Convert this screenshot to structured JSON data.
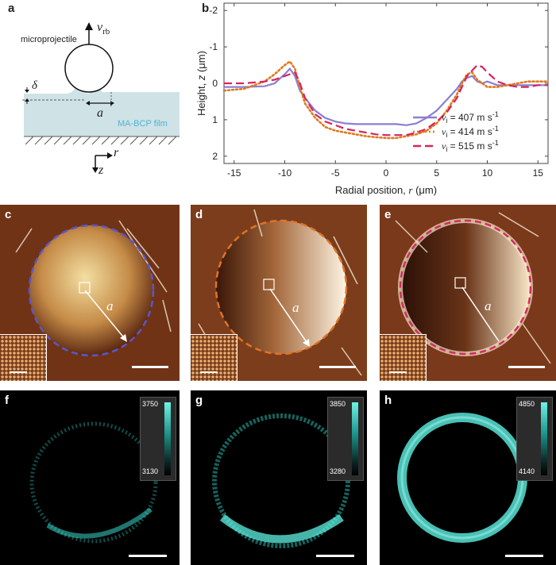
{
  "panels": {
    "a": {
      "label": "a",
      "microprojectile": "microprojectile",
      "v_rb": "v",
      "v_rb_sub": "rb",
      "delta": "δ",
      "a_symbol": "a",
      "film": "MA-BCP film",
      "r_axis": "r",
      "z_axis": "z",
      "colors": {
        "film": "#cfe2e6",
        "film_text": "#4fb3d3"
      }
    },
    "b": {
      "label": "b"
    },
    "c": {
      "label": "c",
      "a_symbol": "a",
      "ring_color": "#5a57c9"
    },
    "d": {
      "label": "d",
      "a_symbol": "a",
      "ring_color": "#e07326"
    },
    "e": {
      "label": "e",
      "a_symbol": "a",
      "ring_color": "#d22a6a"
    },
    "f": {
      "label": "f",
      "cbar_max": "3750",
      "cbar_min": "3130"
    },
    "g": {
      "label": "g",
      "cbar_max": "3850",
      "cbar_min": "3280"
    },
    "h": {
      "label": "h",
      "cbar_max": "4850",
      "cbar_min": "4140"
    }
  },
  "chart_data": {
    "type": "line",
    "xlabel": "Radial position, r (μm)",
    "ylabel": "Height, z (μm)",
    "xlim": [
      -16,
      16
    ],
    "ylim": [
      2.2,
      -2.2
    ],
    "y_inverted": true,
    "xticks": [
      -15,
      -10,
      -5,
      0,
      5,
      10,
      15
    ],
    "yticks": [
      -2,
      -1,
      0,
      1,
      2
    ],
    "ytick_labels": [
      "-2",
      "-1",
      "0",
      "1",
      "2"
    ],
    "grid": false,
    "legend_position": "lower-right",
    "series": [
      {
        "name": "v_i = 407 m s^-1",
        "legend_value": "= 407 m s",
        "color": "#8b7fd0",
        "dash": "solid",
        "x": [
          -16,
          -14,
          -12,
          -11,
          -10,
          -9.5,
          -9,
          -8.5,
          -8,
          -7,
          -6,
          -5,
          -4,
          -3,
          -2,
          -1,
          0,
          1,
          2,
          3,
          4,
          5,
          6,
          7,
          7.5,
          8,
          8.5,
          9,
          9.5,
          10,
          11,
          12,
          13,
          14,
          15,
          16
        ],
        "y": [
          0.1,
          0.1,
          0.08,
          0.0,
          -0.25,
          -0.4,
          -0.2,
          0.2,
          0.4,
          0.75,
          0.95,
          1.05,
          1.1,
          1.12,
          1.12,
          1.12,
          1.12,
          1.12,
          1.15,
          1.1,
          0.95,
          0.75,
          0.45,
          0.15,
          -0.05,
          -0.15,
          -0.2,
          -0.05,
          0.0,
          -0.05,
          0.05,
          0.05,
          0.05,
          0.05,
          0.05,
          0.05
        ]
      },
      {
        "name": "v_i = 414 m s^-1",
        "legend_value": "= 414 m s",
        "color": "#e0791f",
        "dash": "dotted",
        "x": [
          -16,
          -14,
          -12,
          -11,
          -10,
          -9.5,
          -9,
          -8.5,
          -8,
          -7,
          -6,
          -5,
          -4,
          -3,
          -2,
          -1,
          0,
          1,
          2,
          3,
          4,
          5,
          6,
          7,
          7.5,
          8,
          8.5,
          9,
          10,
          11,
          12,
          13,
          14,
          15,
          16
        ],
        "y": [
          0.2,
          0.15,
          -0.05,
          -0.25,
          -0.5,
          -0.6,
          -0.4,
          0.1,
          0.55,
          0.95,
          1.2,
          1.3,
          1.35,
          1.4,
          1.45,
          1.48,
          1.5,
          1.5,
          1.45,
          1.4,
          1.3,
          1.1,
          0.75,
          0.3,
          0.0,
          -0.25,
          -0.3,
          -0.1,
          0.1,
          0.1,
          0.05,
          0.0,
          -0.05,
          -0.05,
          -0.05
        ]
      },
      {
        "name": "v_i = 515 m s^-1",
        "legend_value": "= 515 m s",
        "color": "#d6245e",
        "dash": "dashed",
        "x": [
          -16,
          -14,
          -12,
          -11,
          -10,
          -9.5,
          -9,
          -8.5,
          -8,
          -7,
          -6,
          -5,
          -4,
          -3,
          -2,
          -1,
          0,
          1,
          2,
          3,
          4,
          5,
          6,
          7,
          7.5,
          8,
          8.5,
          9,
          9.5,
          10,
          11,
          12,
          13,
          14,
          15,
          16
        ],
        "y": [
          0.0,
          0.0,
          -0.05,
          -0.1,
          -0.2,
          -0.25,
          -0.3,
          0.0,
          0.4,
          0.85,
          1.05,
          1.15,
          1.25,
          1.3,
          1.35,
          1.4,
          1.42,
          1.42,
          1.42,
          1.35,
          1.25,
          1.05,
          0.8,
          0.4,
          0.1,
          -0.2,
          -0.35,
          -0.5,
          -0.45,
          -0.3,
          -0.05,
          0.05,
          0.1,
          0.1,
          0.05,
          0.05
        ]
      }
    ]
  }
}
